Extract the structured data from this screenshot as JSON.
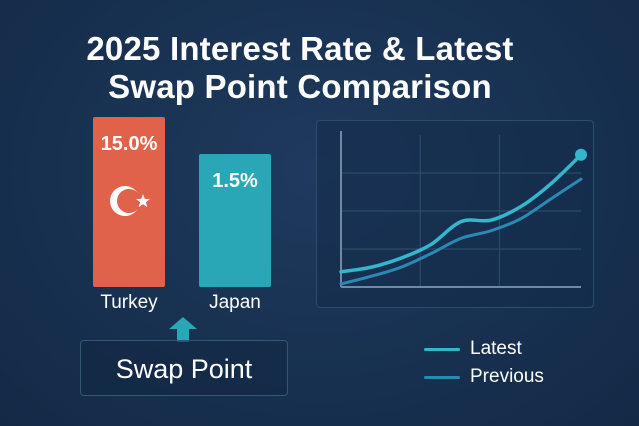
{
  "title": {
    "line1": "2025 Interest Rate & Latest",
    "line2": "Swap Point Comparison"
  },
  "chart_data": [
    {
      "type": "bar",
      "categories": [
        "Turkey",
        "Japan"
      ],
      "values": [
        15.0,
        1.5
      ],
      "value_labels": [
        "15.0%",
        "1.5%"
      ],
      "colors": [
        "#e0624a",
        "#2aa7b7"
      ],
      "annotation": "Swap Point",
      "ylim": [
        0,
        16
      ]
    },
    {
      "type": "line",
      "x": [
        0,
        1,
        2,
        3,
        4,
        5,
        6,
        7,
        8
      ],
      "series": [
        {
          "name": "Latest",
          "color": "#35b6cc",
          "values": [
            1.0,
            1.3,
            1.9,
            2.8,
            4.3,
            4.4,
            5.3,
            6.8,
            8.7
          ]
        },
        {
          "name": "Previous",
          "color": "#2a8ab4",
          "values": [
            0.2,
            0.7,
            1.3,
            2.2,
            3.2,
            3.7,
            4.5,
            5.8,
            7.1
          ]
        }
      ],
      "ylim": [
        0,
        10
      ],
      "grid": true,
      "legend_position": "bottom"
    }
  ]
}
